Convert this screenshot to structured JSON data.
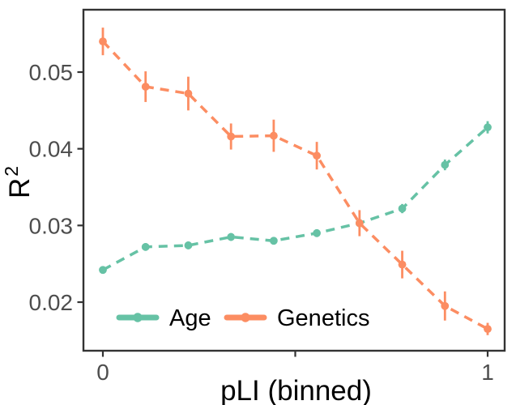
{
  "figure": {
    "background": "#ffffff",
    "panel_border_color": "#333333",
    "tick_color": "#333333",
    "tick_label_color": "#4d4d4d",
    "text_color": "#000000"
  },
  "chart_data": {
    "type": "line",
    "title": "",
    "xlabel": "pLI (binned)",
    "ylabel_base": "R",
    "ylabel_superscript": "2",
    "line_style": "dashed",
    "marker": "circle",
    "grid": false,
    "legend_position": "bottom-inside",
    "x": [
      0,
      0.111,
      0.222,
      0.333,
      0.444,
      0.556,
      0.667,
      0.778,
      0.889,
      1
    ],
    "series": [
      {
        "name": "Age",
        "color": "#66C2A5",
        "values": [
          0.0242,
          0.0272,
          0.0274,
          0.0285,
          0.028,
          0.029,
          0.0303,
          0.0322,
          0.0379,
          0.0428
        ],
        "errors": [
          0.0005,
          0.0005,
          0.0005,
          0.0005,
          0.0005,
          0.0005,
          0.0006,
          0.0006,
          0.0007,
          0.0008
        ]
      },
      {
        "name": "Genetics",
        "color": "#FC8D62",
        "values": [
          0.054,
          0.0481,
          0.0472,
          0.0416,
          0.0417,
          0.0391,
          0.0303,
          0.0249,
          0.0195,
          0.0165
        ],
        "errors": [
          0.0018,
          0.002,
          0.0022,
          0.0017,
          0.0021,
          0.0018,
          0.0017,
          0.0018,
          0.0019,
          0.0008
        ]
      }
    ],
    "x_ticks": [
      {
        "value": 0,
        "label": "0"
      },
      {
        "value": 0.5,
        "label": ""
      },
      {
        "value": 1,
        "label": "1"
      }
    ],
    "y_ticks": [
      {
        "value": 0.02,
        "label": "0.02"
      },
      {
        "value": 0.03,
        "label": "0.03"
      },
      {
        "value": 0.04,
        "label": "0.04"
      },
      {
        "value": 0.05,
        "label": "0.05"
      }
    ],
    "xlim": [
      -0.05,
      1.045
    ],
    "ylim": [
      0.0139,
      0.0585
    ]
  }
}
